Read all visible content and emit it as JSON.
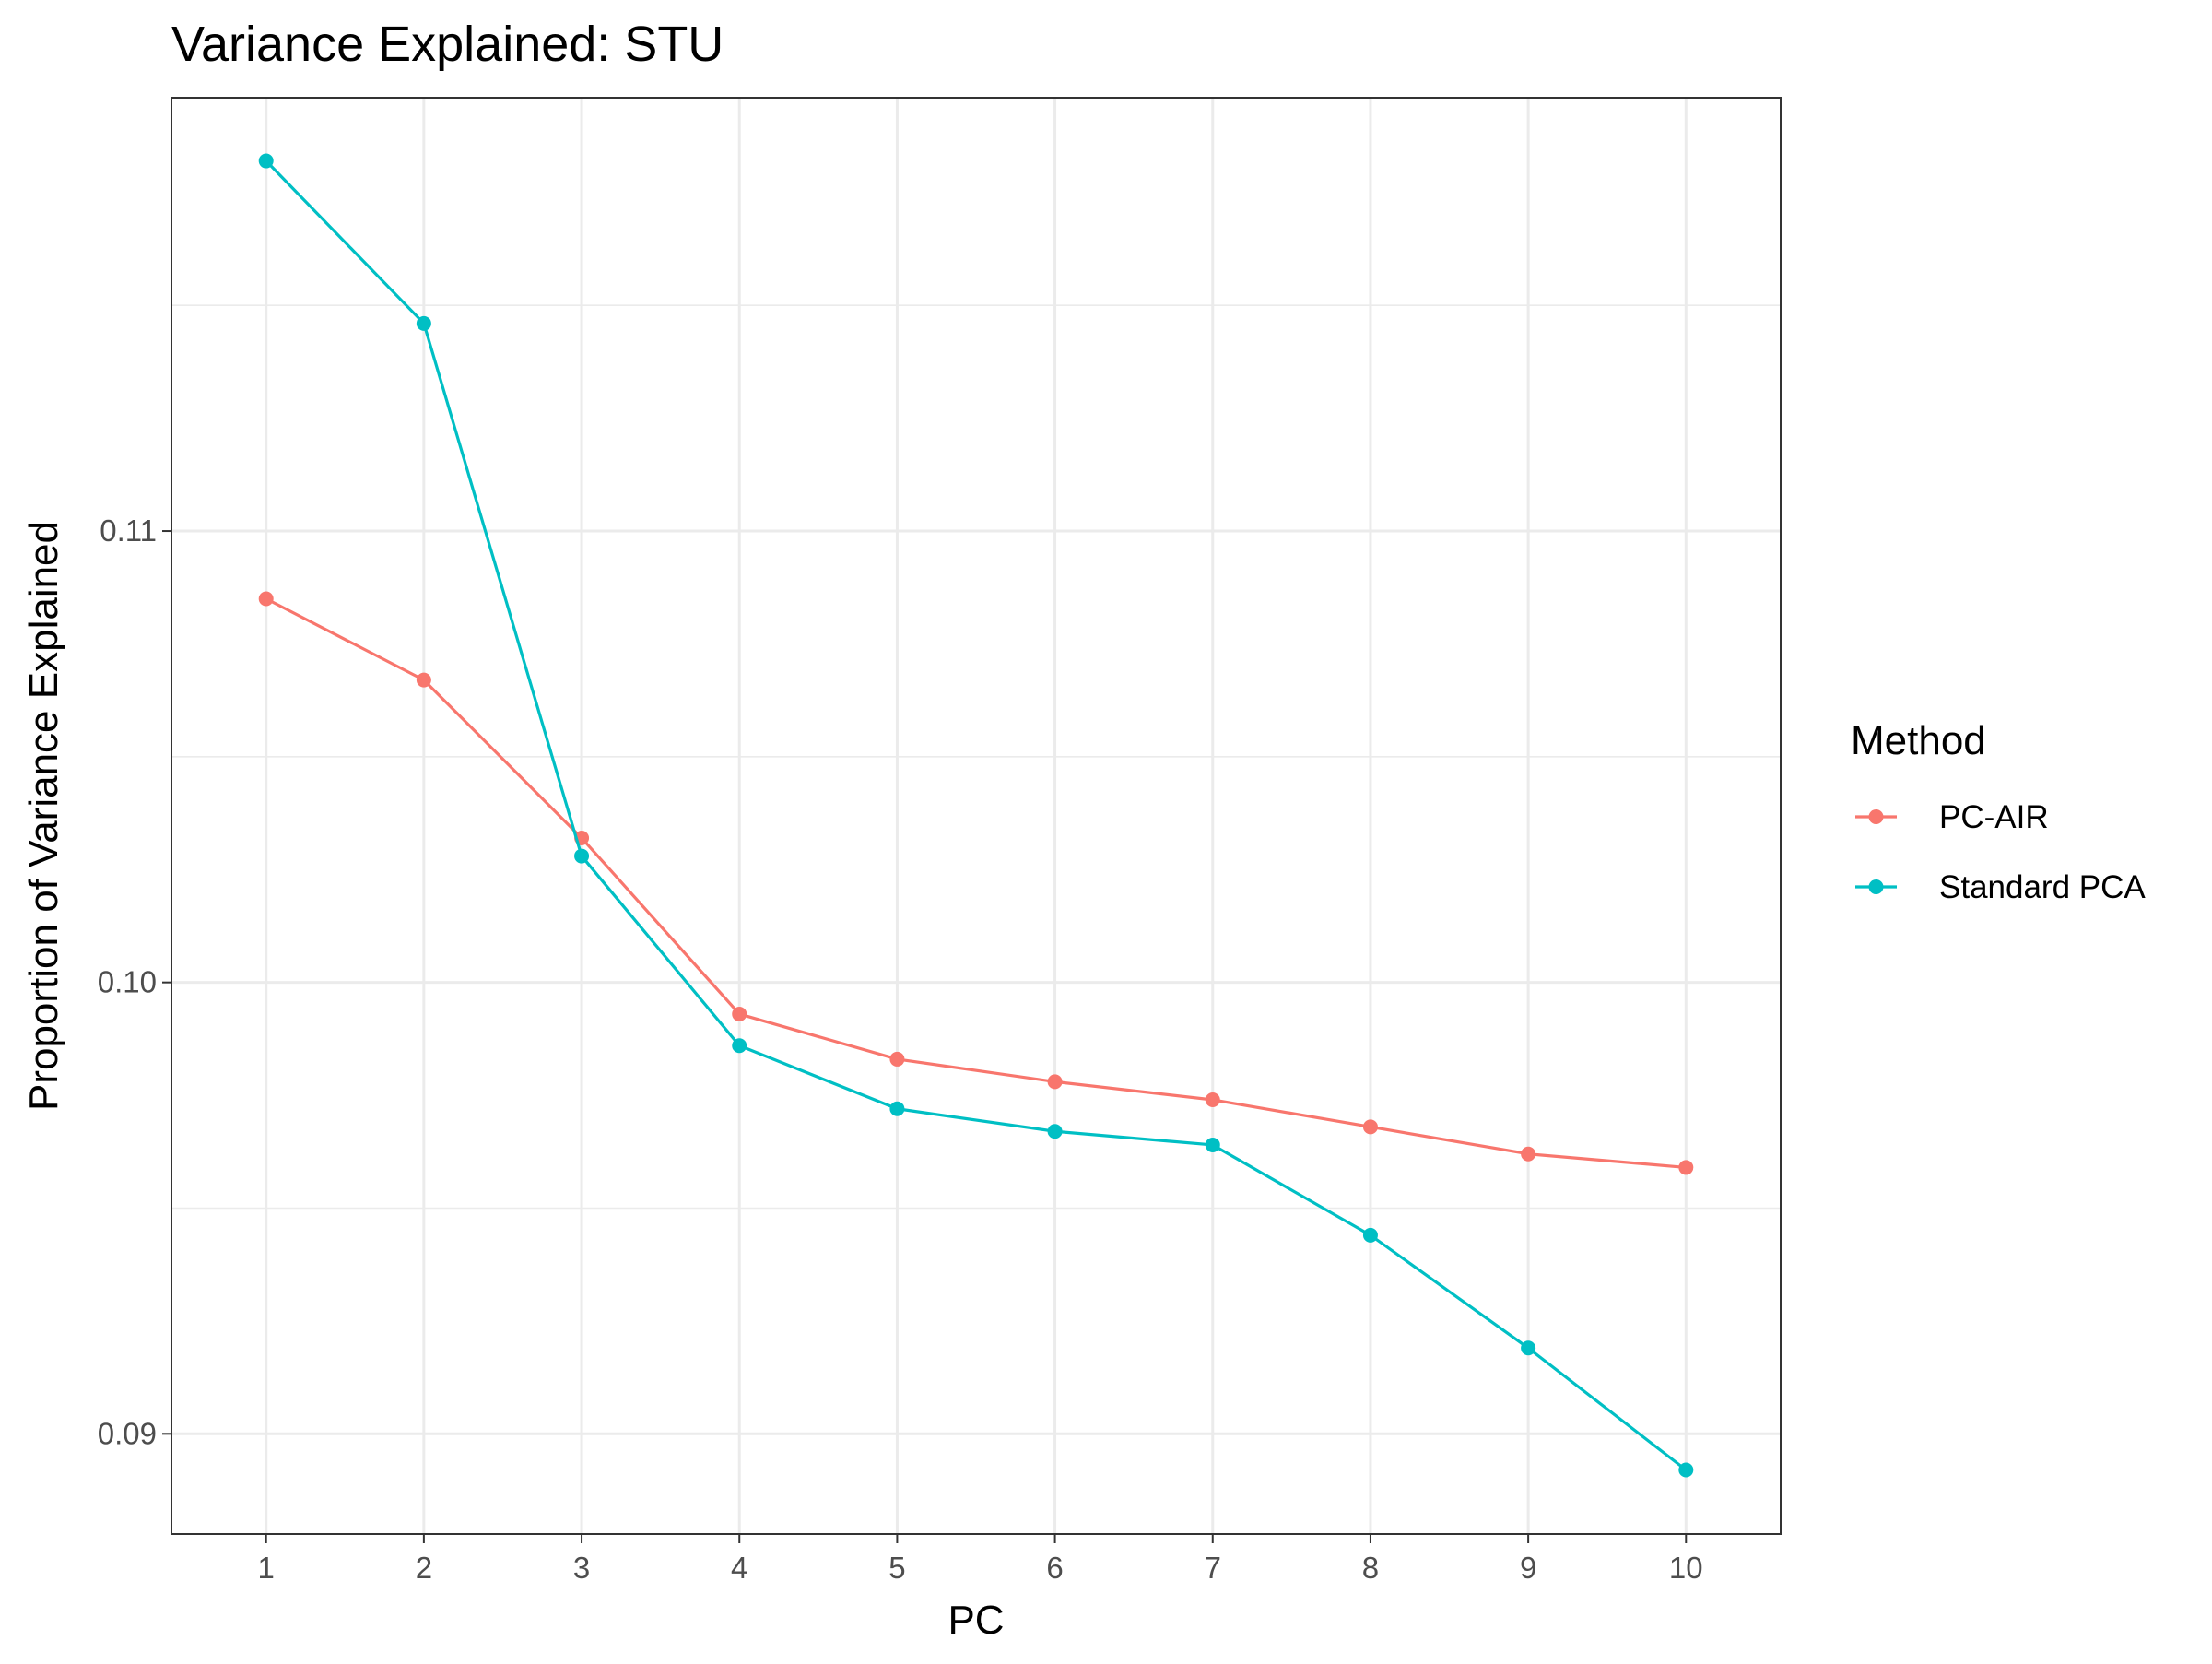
{
  "chart_data": {
    "type": "line",
    "title": "Variance Explained: STU",
    "xlabel": "PC",
    "ylabel": "Proportion of Variance Explained",
    "x": [
      1,
      2,
      3,
      4,
      5,
      6,
      7,
      8,
      9,
      10
    ],
    "x_ticks": [
      "1",
      "2",
      "3",
      "4",
      "5",
      "6",
      "7",
      "8",
      "9",
      "10"
    ],
    "xlim": [
      0.4,
      10.6
    ],
    "y_ticks": [
      0.09,
      0.1,
      0.11
    ],
    "y_tick_labels": [
      "0.09",
      "0.10",
      "0.11"
    ],
    "ylim": [
      0.08778,
      0.1196
    ],
    "grid": true,
    "legend": {
      "title": "Method",
      "position": "right"
    },
    "series": [
      {
        "name": "PC-AIR",
        "color": "#F8766D",
        "values": [
          0.1085,
          0.1067,
          0.1032,
          0.0993,
          0.0983,
          0.0978,
          0.0974,
          0.0968,
          0.0962,
          0.0959
        ]
      },
      {
        "name": "Standard PCA",
        "color": "#00BFC4",
        "values": [
          0.1182,
          0.1146,
          0.1028,
          0.0986,
          0.0972,
          0.0967,
          0.0964,
          0.0944,
          0.0919,
          0.0892
        ]
      }
    ]
  }
}
